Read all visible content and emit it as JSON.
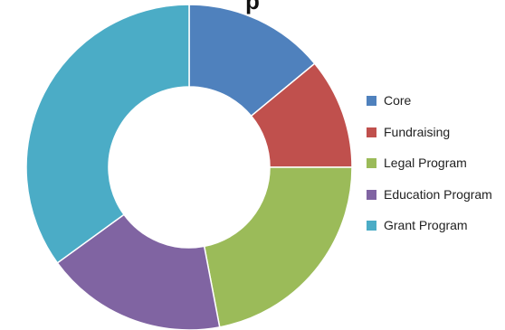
{
  "chart_data": {
    "type": "pie",
    "style": "donut",
    "title": "p",
    "categories": [
      "Core",
      "Fundraising",
      "Legal Program",
      "Education Program",
      "Grant Program"
    ],
    "values": [
      14,
      11,
      22,
      18,
      35
    ],
    "unit": "percent of total (estimated)",
    "colors": [
      "#4f81bd",
      "#c0504d",
      "#9bbb59",
      "#8064a2",
      "#4bacc6"
    ],
    "legend_position": "right"
  }
}
